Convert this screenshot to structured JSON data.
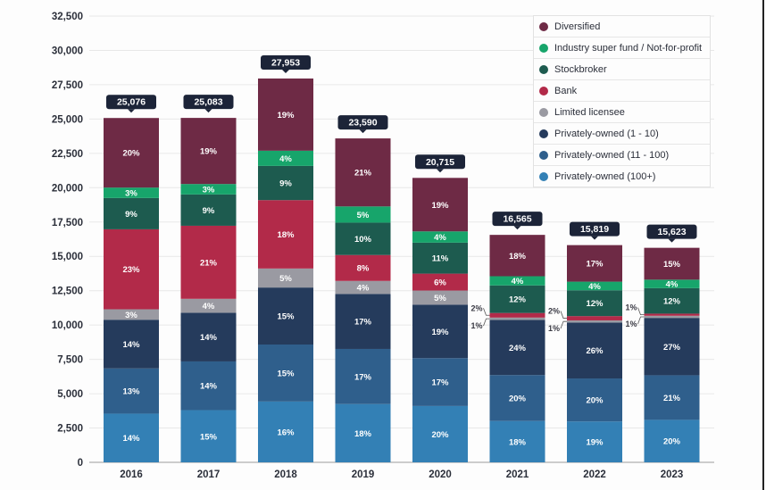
{
  "chart_data": {
    "type": "bar",
    "stacked": true,
    "title": "",
    "xlabel": "",
    "ylabel": "",
    "ylim": [
      0,
      32500
    ],
    "yticks": [
      0,
      2500,
      5000,
      7500,
      10000,
      12500,
      15000,
      17500,
      20000,
      22500,
      25000,
      27500,
      30000,
      32500
    ],
    "ytick_labels": [
      "0",
      "2,500",
      "5,000",
      "7,500",
      "10,000",
      "12,500",
      "15,000",
      "17,500",
      "20,000",
      "22,500",
      "25,000",
      "27,500",
      "30,000",
      "32,500"
    ],
    "grid": true,
    "legend_position": "top-right",
    "categories": [
      "2016",
      "2017",
      "2018",
      "2019",
      "2020",
      "2021",
      "2022",
      "2023"
    ],
    "totals": [
      25076,
      25083,
      27953,
      23590,
      20715,
      16565,
      15819,
      15623
    ],
    "total_labels": [
      "25,076",
      "25,083",
      "27,953",
      "23,590",
      "20,715",
      "16,565",
      "15,819",
      "15,623"
    ],
    "series": [
      {
        "name": "Privately-owned (100+)",
        "color": "#3380b5",
        "percent": [
          14,
          15,
          16,
          18,
          20,
          18,
          19,
          20
        ]
      },
      {
        "name": "Privately-owned (11 - 100)",
        "color": "#2f5f8c",
        "percent": [
          13,
          14,
          15,
          17,
          17,
          20,
          20,
          21
        ]
      },
      {
        "name": "Privately-owned (1 - 10)",
        "color": "#253b5c",
        "percent": [
          14,
          14,
          15,
          17,
          19,
          24,
          26,
          27
        ]
      },
      {
        "name": "Limited licensee",
        "color": "#9a9aa2",
        "percent": [
          3,
          4,
          5,
          4,
          5,
          1,
          1,
          1
        ]
      },
      {
        "name": "Bank",
        "color": "#b22a49",
        "percent": [
          23,
          21,
          18,
          8,
          6,
          2,
          2,
          1
        ]
      },
      {
        "name": "Stockbroker",
        "color": "#1d5b4f",
        "percent": [
          9,
          9,
          9,
          10,
          11,
          12,
          12,
          12
        ]
      },
      {
        "name": "Industry super fund / Not-for-profit",
        "color": "#17a56b",
        "percent": [
          3,
          3,
          4,
          5,
          4,
          4,
          4,
          4
        ]
      },
      {
        "name": "Diversified",
        "color": "#6e2a45",
        "percent": [
          20,
          19,
          19,
          21,
          19,
          18,
          17,
          15
        ]
      }
    ],
    "legend_order": [
      "Diversified",
      "Industry super fund / Not-for-profit",
      "Stockbroker",
      "Bank",
      "Limited licensee",
      "Privately-owned (1 - 10)",
      "Privately-owned (11 - 100)",
      "Privately-owned (100+)"
    ],
    "callout_years": [
      "2021",
      "2022",
      "2023"
    ]
  }
}
